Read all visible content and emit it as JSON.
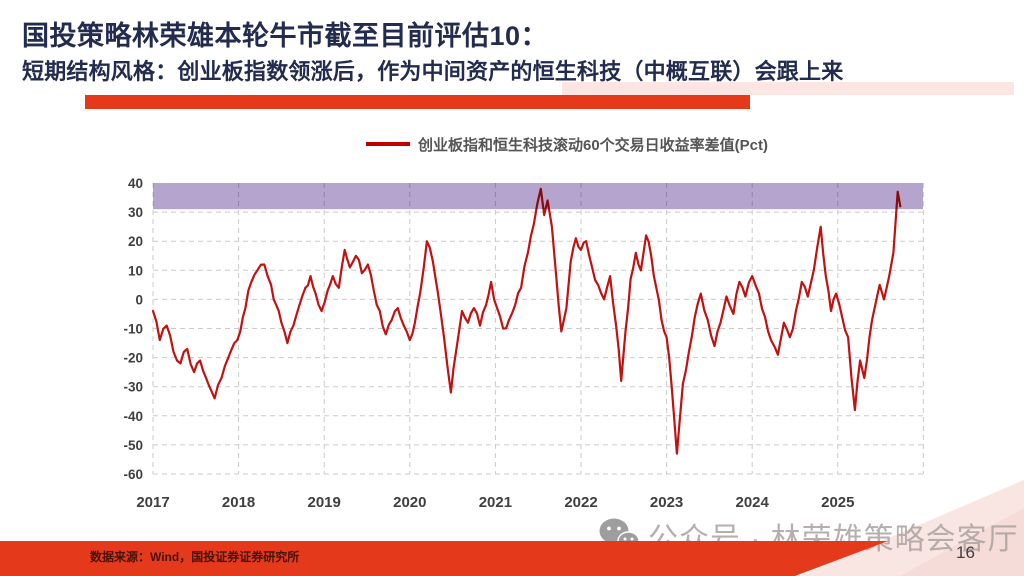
{
  "slide": {
    "title": "国投策略林荣雄本轮牛市截至目前评估10：",
    "subtitle": "短期结构风格：创业板指数领涨后，作为中间资产的恒生科技（中概互联）会跟上来",
    "page_number": "16",
    "accent_red": "#E5391B",
    "title_color": "#232B4F"
  },
  "footer": {
    "source": "数据来源：Wind，国投证券证券研究所"
  },
  "watermark": {
    "label": "公众号 · 林荣雄策略会客厅",
    "icon": "wechat-icon",
    "color": "#ABA29F"
  },
  "chart_data": {
    "type": "line",
    "legend": "创业板指和恒生科技滚动60个交易日收益率差值(Pct)",
    "xlabel": "",
    "ylabel": "",
    "xlim": [
      2016.85,
      2026.0
    ],
    "ylim": [
      -60,
      40
    ],
    "grid": "dashed",
    "x_ticks": [
      "2017",
      "2018",
      "2019",
      "2020",
      "2021",
      "2022",
      "2023",
      "2024",
      "2025"
    ],
    "y_ticks": [
      40,
      30,
      20,
      10,
      0,
      -10,
      -20,
      -30,
      -40,
      -50,
      -60
    ],
    "highlight_band": {
      "from": 31,
      "to": 40,
      "color": "#B5A5CE"
    },
    "series": [
      {
        "name": "创业板指和恒生科技滚动60个交易日收益率差值(Pct)",
        "color": "#C11111",
        "points": [
          [
            2017.0,
            -4
          ],
          [
            2017.08,
            -14
          ],
          [
            2017.16,
            -9
          ],
          [
            2017.24,
            -18
          ],
          [
            2017.32,
            -22
          ],
          [
            2017.4,
            -17
          ],
          [
            2017.48,
            -25
          ],
          [
            2017.55,
            -21
          ],
          [
            2017.62,
            -27
          ],
          [
            2017.72,
            -34
          ],
          [
            2017.8,
            -27
          ],
          [
            2017.88,
            -20
          ],
          [
            2017.95,
            -15
          ],
          [
            2018.02,
            -11
          ],
          [
            2018.08,
            -3
          ],
          [
            2018.15,
            6
          ],
          [
            2018.22,
            10
          ],
          [
            2018.3,
            12
          ],
          [
            2018.38,
            5
          ],
          [
            2018.44,
            -2
          ],
          [
            2018.5,
            -8
          ],
          [
            2018.57,
            -15
          ],
          [
            2018.64,
            -9
          ],
          [
            2018.71,
            -2
          ],
          [
            2018.78,
            4
          ],
          [
            2018.84,
            8
          ],
          [
            2018.9,
            2
          ],
          [
            2018.97,
            -4
          ],
          [
            2019.04,
            3
          ],
          [
            2019.1,
            8
          ],
          [
            2019.17,
            4
          ],
          [
            2019.24,
            17
          ],
          [
            2019.3,
            11
          ],
          [
            2019.37,
            15
          ],
          [
            2019.44,
            9
          ],
          [
            2019.51,
            12
          ],
          [
            2019.58,
            3
          ],
          [
            2019.65,
            -4
          ],
          [
            2019.72,
            -12
          ],
          [
            2019.79,
            -7
          ],
          [
            2019.86,
            -3
          ],
          [
            2019.93,
            -9
          ],
          [
            2020.0,
            -14
          ],
          [
            2020.06,
            -8
          ],
          [
            2020.12,
            2
          ],
          [
            2020.2,
            20
          ],
          [
            2020.27,
            13
          ],
          [
            2020.33,
            2
          ],
          [
            2020.4,
            -13
          ],
          [
            2020.48,
            -32
          ],
          [
            2020.54,
            -18
          ],
          [
            2020.61,
            -4
          ],
          [
            2020.68,
            -8
          ],
          [
            2020.75,
            -3
          ],
          [
            2020.82,
            -9
          ],
          [
            2020.89,
            -2
          ],
          [
            2020.95,
            6
          ],
          [
            2021.02,
            -3
          ],
          [
            2021.09,
            -10
          ],
          [
            2021.16,
            -7
          ],
          [
            2021.23,
            -2
          ],
          [
            2021.3,
            4
          ],
          [
            2021.38,
            16
          ],
          [
            2021.45,
            26
          ],
          [
            2021.53,
            38
          ],
          [
            2021.57,
            29
          ],
          [
            2021.61,
            34
          ],
          [
            2021.66,
            25
          ],
          [
            2021.71,
            8
          ],
          [
            2021.77,
            -11
          ],
          [
            2021.83,
            -3
          ],
          [
            2021.88,
            13
          ],
          [
            2021.94,
            21
          ],
          [
            2022.0,
            17
          ],
          [
            2022.06,
            20
          ],
          [
            2022.13,
            11
          ],
          [
            2022.2,
            5
          ],
          [
            2022.27,
            0
          ],
          [
            2022.34,
            8
          ],
          [
            2022.41,
            -9
          ],
          [
            2022.47,
            -28
          ],
          [
            2022.52,
            -11
          ],
          [
            2022.58,
            7
          ],
          [
            2022.64,
            16
          ],
          [
            2022.7,
            10
          ],
          [
            2022.76,
            22
          ],
          [
            2022.82,
            15
          ],
          [
            2022.88,
            4
          ],
          [
            2022.94,
            -7
          ],
          [
            2023.0,
            -13
          ],
          [
            2023.06,
            -30
          ],
          [
            2023.12,
            -53
          ],
          [
            2023.19,
            -29
          ],
          [
            2023.26,
            -18
          ],
          [
            2023.33,
            -6
          ],
          [
            2023.4,
            2
          ],
          [
            2023.48,
            -7
          ],
          [
            2023.56,
            -16
          ],
          [
            2023.63,
            -8
          ],
          [
            2023.7,
            1
          ],
          [
            2023.78,
            -5
          ],
          [
            2023.85,
            6
          ],
          [
            2023.92,
            1
          ],
          [
            2024.0,
            8
          ],
          [
            2024.08,
            2
          ],
          [
            2024.15,
            -6
          ],
          [
            2024.22,
            -14
          ],
          [
            2024.3,
            -19
          ],
          [
            2024.37,
            -8
          ],
          [
            2024.44,
            -13
          ],
          [
            2024.51,
            -4
          ],
          [
            2024.58,
            6
          ],
          [
            2024.65,
            1
          ],
          [
            2024.72,
            10
          ],
          [
            2024.8,
            25
          ],
          [
            2024.86,
            8
          ],
          [
            2024.92,
            -4
          ],
          [
            2024.98,
            2
          ],
          [
            2025.05,
            -6
          ],
          [
            2025.12,
            -13
          ],
          [
            2025.2,
            -38
          ],
          [
            2025.26,
            -21
          ],
          [
            2025.31,
            -27
          ],
          [
            2025.37,
            -13
          ],
          [
            2025.43,
            -3
          ],
          [
            2025.49,
            5
          ],
          [
            2025.54,
            0
          ],
          [
            2025.6,
            8
          ],
          [
            2025.65,
            16
          ],
          [
            2025.7,
            37
          ],
          [
            2025.73,
            32
          ]
        ]
      }
    ]
  }
}
